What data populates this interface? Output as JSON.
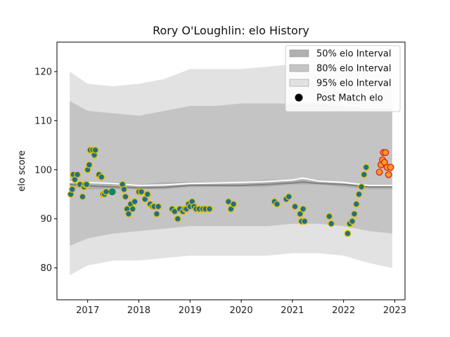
{
  "chart_data": {
    "type": "scatter",
    "title": "Rory O'Loughlin: elo History",
    "xlabel": "",
    "ylabel": "elo score",
    "xlim": [
      2016.4,
      2023.2
    ],
    "ylim": [
      73.5,
      126
    ],
    "x_ticks": [
      2017,
      2018,
      2019,
      2020,
      2021,
      2022,
      2023
    ],
    "x_tick_labels": [
      "2017",
      "2018",
      "2019",
      "2020",
      "2021",
      "2022",
      "2023"
    ],
    "y_ticks": [
      80,
      90,
      100,
      110,
      120
    ],
    "y_tick_labels": [
      "80",
      "90",
      "100",
      "110",
      "120"
    ],
    "grid": false,
    "legend_position": "top-right",
    "legend": [
      {
        "label": "50% elo Interval",
        "color": "#b0b0b0",
        "kind": "patch"
      },
      {
        "label": "80% elo Interval",
        "color": "#c4c4c4",
        "kind": "patch"
      },
      {
        "label": "95% elo Interval",
        "color": "#e2e2e2",
        "kind": "patch"
      },
      {
        "label": "Post Match elo",
        "color": "#000000",
        "kind": "marker"
      }
    ],
    "series": [
      {
        "name": "95% elo Interval",
        "kind": "band",
        "color": "#e2e2e2",
        "x": [
          2016.65,
          2017.0,
          2017.5,
          2018.0,
          2018.5,
          2019.0,
          2019.5,
          2020.0,
          2020.5,
          2021.0,
          2021.5,
          2022.0,
          2022.5,
          2022.95
        ],
        "lower": [
          78.5,
          80.5,
          81.5,
          81.5,
          82.0,
          82.5,
          82.5,
          82.5,
          82.5,
          83.0,
          83.0,
          82.5,
          81.0,
          80.0
        ],
        "upper": [
          120.0,
          117.5,
          117.0,
          117.5,
          118.5,
          120.5,
          120.5,
          120.5,
          121.0,
          121.5,
          121.5,
          121.0,
          120.0,
          120.5
        ]
      },
      {
        "name": "80% elo Interval",
        "kind": "band",
        "color": "#c4c4c4",
        "x": [
          2016.65,
          2017.0,
          2017.5,
          2018.0,
          2018.5,
          2019.0,
          2019.5,
          2020.0,
          2020.5,
          2021.0,
          2021.5,
          2022.0,
          2022.5,
          2022.95
        ],
        "lower": [
          84.5,
          86.0,
          87.0,
          87.5,
          88.0,
          88.5,
          88.5,
          88.5,
          88.5,
          89.0,
          89.0,
          88.5,
          87.5,
          87.0
        ],
        "upper": [
          114.0,
          112.0,
          111.5,
          111.0,
          112.0,
          113.0,
          113.0,
          113.5,
          113.5,
          113.5,
          113.5,
          113.0,
          112.5,
          112.5
        ]
      },
      {
        "name": "50% elo Interval",
        "kind": "band",
        "color": "#b0b0b0",
        "x": [
          2016.65,
          2017.0,
          2017.5,
          2018.0,
          2018.5,
          2019.0,
          2019.5,
          2020.0,
          2020.5,
          2021.0,
          2021.5,
          2022.0,
          2022.5,
          2022.95
        ],
        "lower": [
          96.5,
          96.0,
          96.0,
          96.0,
          96.0,
          96.5,
          96.5,
          96.5,
          96.5,
          97.0,
          97.0,
          96.5,
          96.0,
          96.0
        ],
        "upper": [
          97.5,
          97.5,
          97.5,
          97.0,
          97.5,
          97.5,
          97.5,
          97.5,
          98.0,
          98.0,
          98.0,
          97.5,
          97.0,
          97.0
        ]
      },
      {
        "name": "",
        "kind": "line",
        "color": "#808080",
        "x": [
          2016.65,
          2017.0,
          2017.5,
          2018.0,
          2018.5,
          2019.0,
          2019.5,
          2020.0,
          2020.5,
          2021.0,
          2021.2,
          2021.5,
          2022.0,
          2022.5,
          2022.95
        ],
        "y": [
          97.0,
          96.7,
          96.5,
          96.3,
          96.4,
          96.8,
          96.8,
          96.8,
          97.0,
          97.3,
          97.5,
          97.2,
          97.0,
          96.5,
          96.5
        ]
      },
      {
        "name": "",
        "kind": "line",
        "color": "#ffffff",
        "x": [
          2016.65,
          2017.0,
          2017.5,
          2018.0,
          2018.5,
          2019.0,
          2019.5,
          2020.0,
          2020.5,
          2021.0,
          2021.2,
          2021.5,
          2022.0,
          2022.5,
          2022.95
        ],
        "y": [
          97.5,
          97.4,
          97.2,
          96.8,
          96.9,
          97.2,
          97.3,
          97.4,
          97.6,
          97.9,
          98.3,
          97.7,
          97.4,
          96.8,
          96.8
        ]
      },
      {
        "name": "Post Match elo",
        "kind": "scatter",
        "x": [
          2016.67,
          2016.7,
          2016.72,
          2016.75,
          2016.8,
          2016.85,
          2016.9,
          2016.93,
          2016.95,
          2016.98,
          2017.0,
          2017.03,
          2017.05,
          2017.1,
          2017.13,
          2017.15,
          2017.22,
          2017.27,
          2017.3,
          2017.33,
          2017.36,
          2017.68,
          2017.71,
          2017.74,
          2017.77,
          2017.8,
          2017.84,
          2017.88,
          2017.92,
          2018.0,
          2018.05,
          2018.12,
          2018.17,
          2018.22,
          2018.27,
          2018.3,
          2018.35,
          2018.38,
          2018.65,
          2018.7,
          2018.76,
          2018.8,
          2018.86,
          2018.9,
          2018.93,
          2018.97,
          2019.0,
          2019.04,
          2019.08,
          2019.12,
          2019.18,
          2019.25,
          2019.3,
          2019.38,
          2019.75,
          2019.8,
          2019.85,
          2020.65,
          2020.7,
          2020.88,
          2020.93,
          2021.05,
          2021.15,
          2021.18,
          2021.21,
          2021.24,
          2021.72,
          2021.76,
          2022.08,
          2022.12,
          2022.17,
          2022.21,
          2022.25,
          2022.3,
          2022.35,
          2022.4,
          2022.44
        ],
        "y": [
          95.0,
          96.0,
          99.0,
          98.0,
          99.0,
          97.0,
          94.5,
          96.5,
          97.0,
          97.0,
          100.0,
          101.0,
          104.0,
          104.0,
          103.0,
          104.0,
          99.0,
          98.5,
          95.0,
          95.0,
          95.5,
          97.0,
          96.0,
          94.5,
          92.0,
          91.0,
          93.0,
          92.0,
          93.5,
          95.5,
          95.5,
          94.0,
          95.0,
          93.0,
          92.5,
          92.5,
          91.0,
          92.5,
          92.0,
          91.5,
          90.0,
          92.0,
          91.5,
          92.0,
          92.0,
          93.0,
          92.5,
          93.5,
          92.5,
          92.0,
          92.0,
          92.0,
          92.0,
          92.0,
          93.5,
          92.0,
          93.0,
          93.5,
          93.0,
          94.0,
          94.5,
          92.5,
          91.0,
          89.5,
          92.0,
          89.5,
          90.5,
          89.0,
          87.0,
          89.0,
          89.5,
          91.0,
          93.0,
          95.0,
          96.5,
          99.0,
          100.5
        ],
        "fill": "#1f6f8b",
        "edge": "#e6c200"
      },
      {
        "name": "",
        "kind": "scatter",
        "x": [
          2017.48
        ],
        "y": [
          95.5
        ],
        "fill": "#0e8a5a",
        "edge": "#0e8a5a"
      },
      {
        "name": "",
        "kind": "scatter",
        "x": [
          2022.7,
          2022.73,
          2022.76,
          2022.78,
          2022.8,
          2022.82,
          2022.85,
          2022.88,
          2022.92
        ],
        "y": [
          99.5,
          101.0,
          102.0,
          103.5,
          101.5,
          103.5,
          100.5,
          99.0,
          100.5
        ],
        "fill": "#f59a23",
        "edge": "#e0201a"
      }
    ]
  }
}
